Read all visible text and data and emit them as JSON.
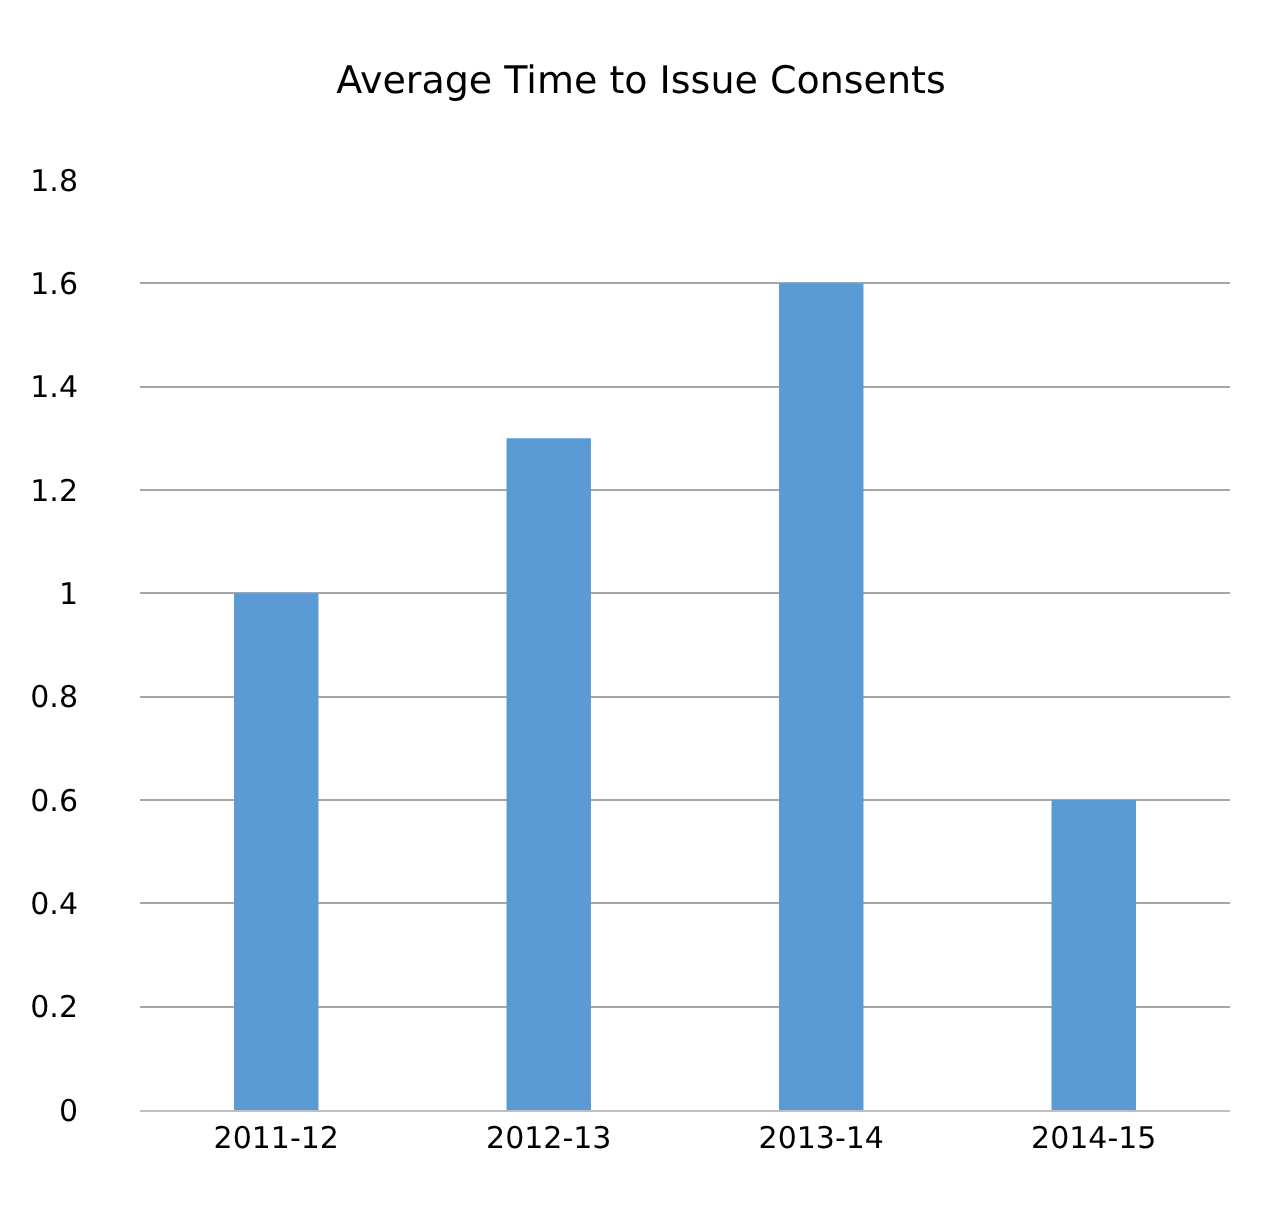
{
  "chart_data": {
    "type": "bar",
    "title": "Average Time to Issue Consents",
    "categories": [
      "2011-12",
      "2012-13",
      "2013-14",
      "2014-15"
    ],
    "values": [
      1,
      1.3,
      1.6,
      0.6
    ],
    "color": "#5b9bd5",
    "ylim": [
      0,
      1.8
    ],
    "yticks": [
      0,
      0.2,
      0.4,
      0.6,
      0.8,
      1,
      1.2,
      1.4,
      1.6,
      1.8
    ],
    "grid": "y"
  }
}
